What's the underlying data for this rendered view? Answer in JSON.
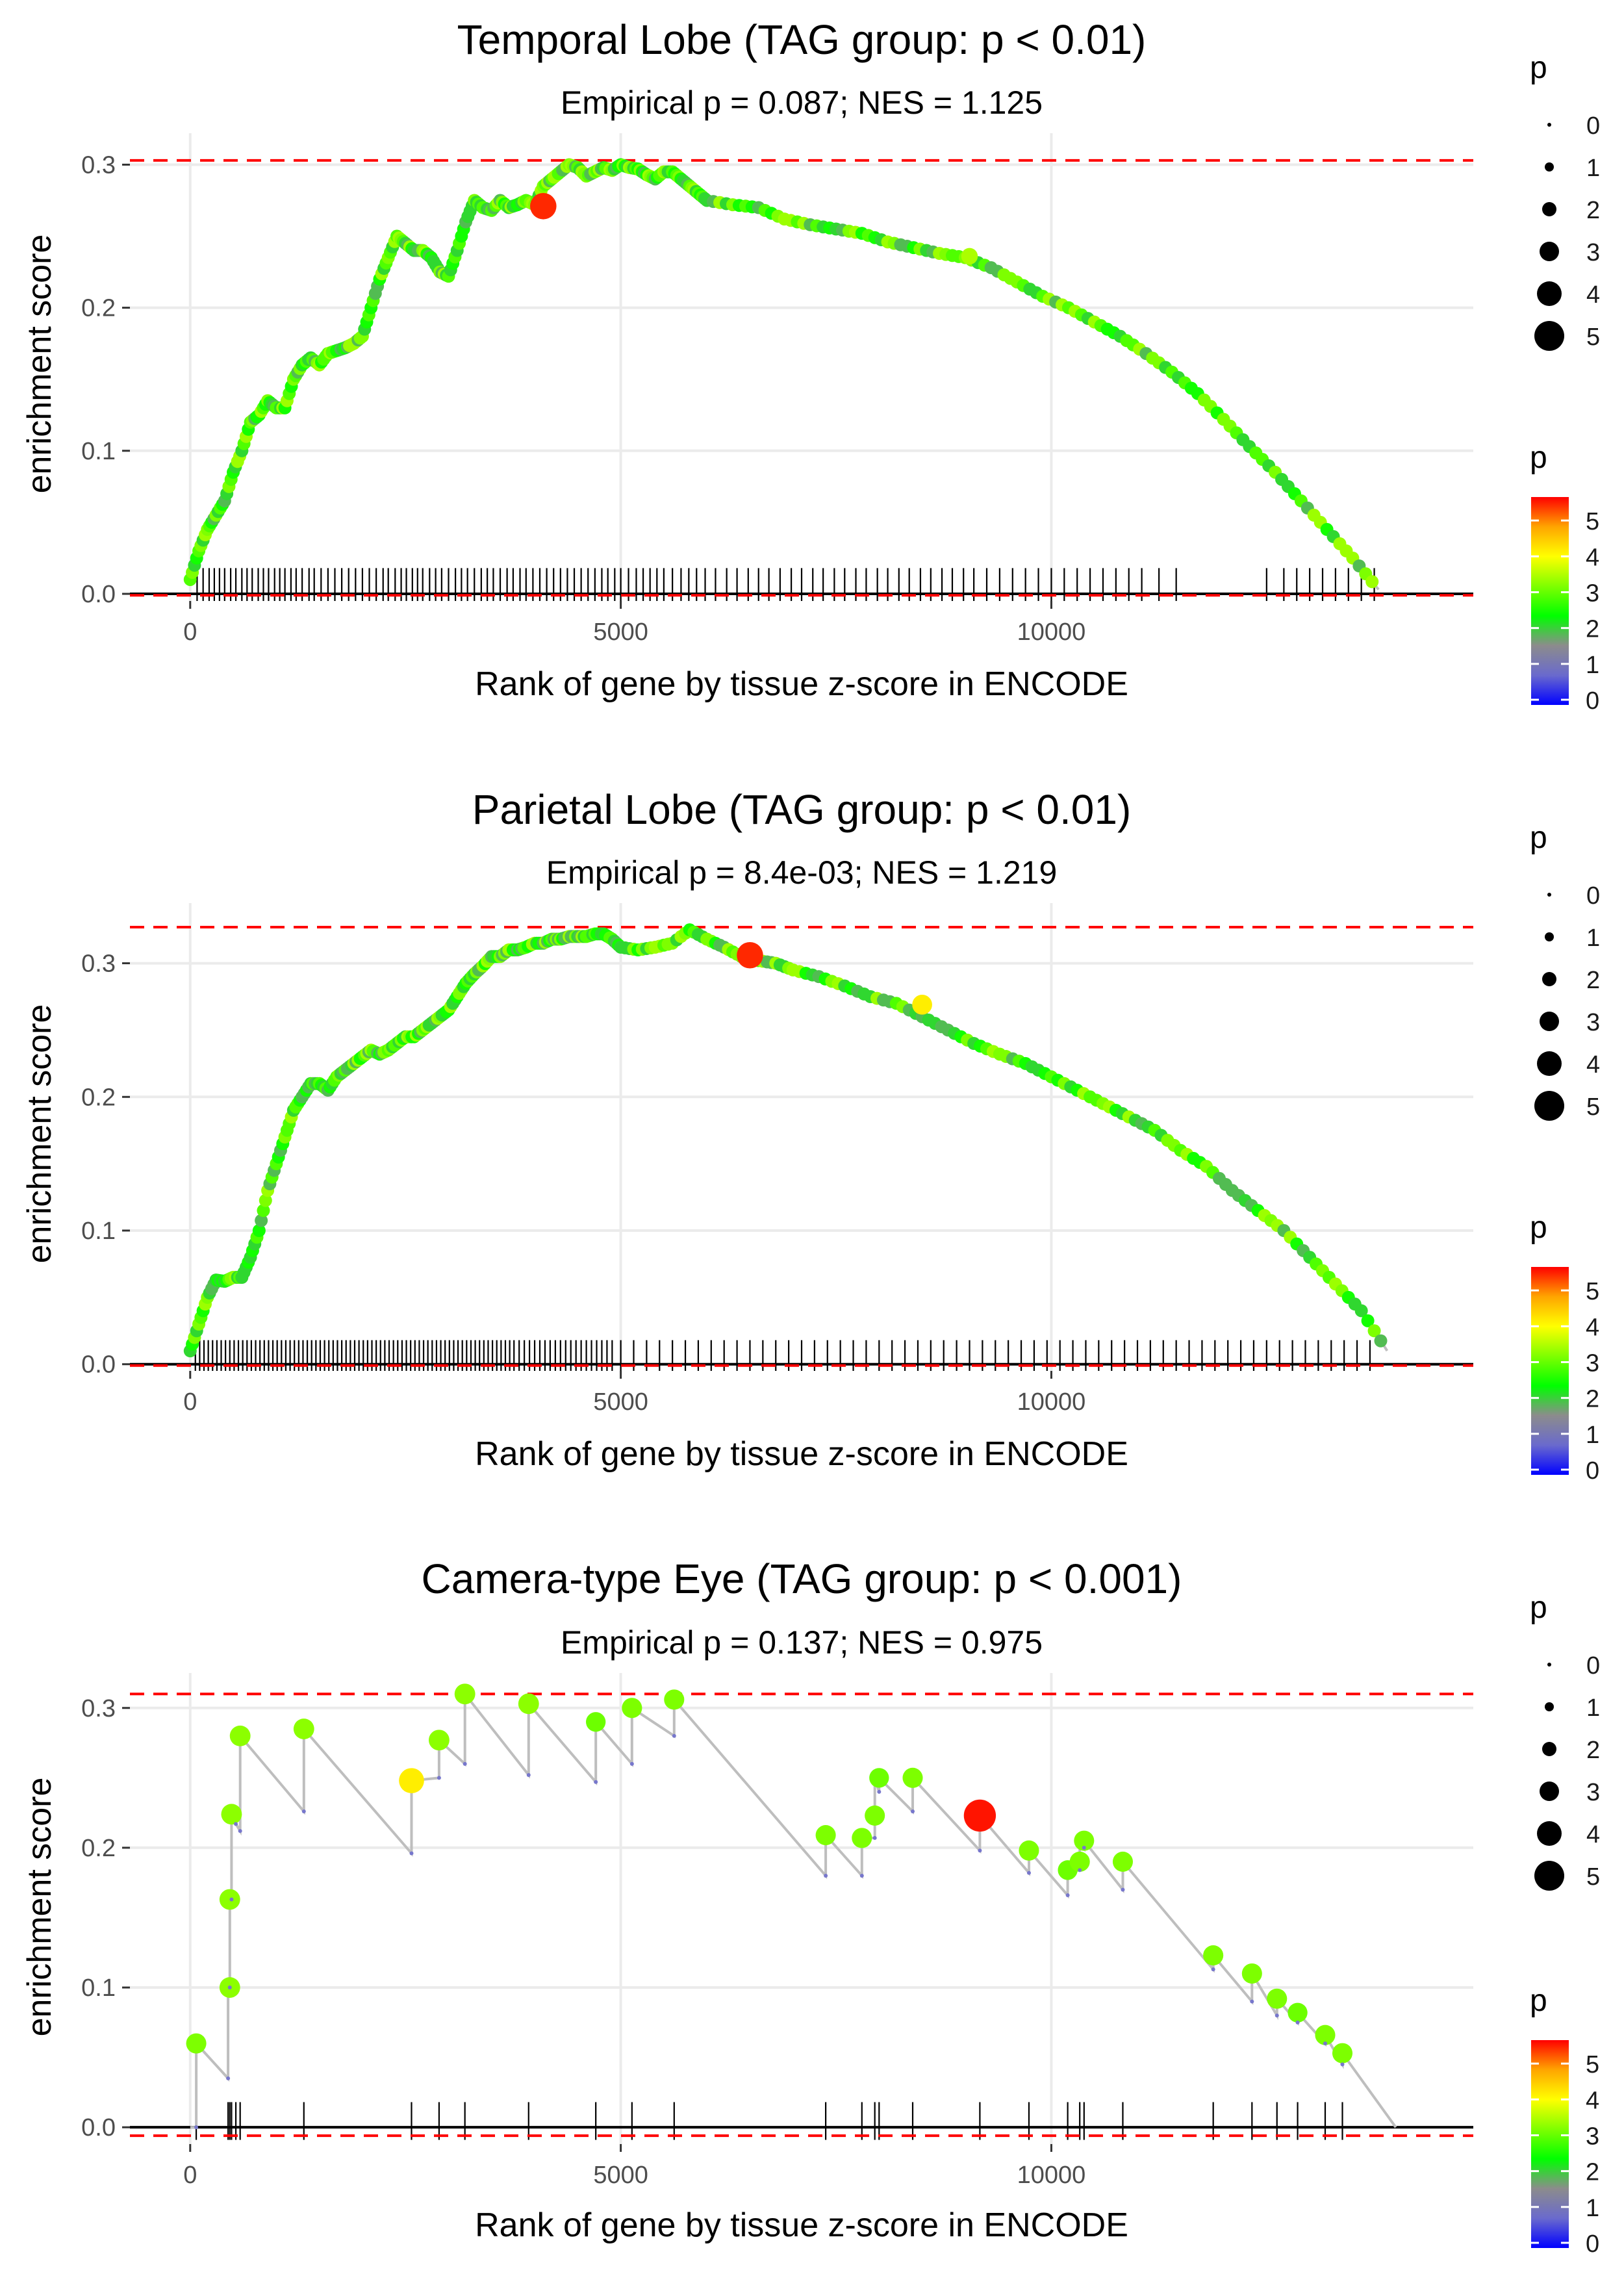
{
  "colors": {
    "panel_bg": "#ffffff",
    "grid": "#ebebeb",
    "path_line": "#bebebe",
    "hit_tick": "#000000",
    "baseline": "#000000",
    "dashed_limit": "#ff0000",
    "colorbar_stops": [
      "#0000ff",
      "#6a6acd",
      "#8c8c8c",
      "#00ff00",
      "#7fff00",
      "#ffff00",
      "#ffa500",
      "#ff0000"
    ]
  },
  "chart_data": [
    {
      "type": "line",
      "title": "Temporal Lobe (TAG group: p < 0.01)",
      "subtitle": "Empirical p = 0.087; NES = 1.125",
      "xlabel": "Rank of gene by tissue z-score in ENCODE",
      "ylabel": "enrichment score",
      "xlim": [
        -700,
        14900
      ],
      "ylim": [
        -0.005,
        0.322
      ],
      "xticks": [
        0,
        5000,
        10000
      ],
      "xtick_labels": [
        "0",
        "5000",
        "10000"
      ],
      "yticks": [
        0.0,
        0.1,
        0.2,
        0.3
      ],
      "ytick_labels": [
        "0.0",
        "0.1",
        "0.2",
        "0.3"
      ],
      "dashed_lines": [
        0.303,
        -0.001
      ],
      "curve_x": [
        0,
        100,
        200,
        300,
        400,
        500,
        600,
        700,
        800,
        900,
        1000,
        1100,
        1200,
        1300,
        1400,
        1500,
        1600,
        1700,
        1800,
        1900,
        2000,
        2100,
        2200,
        2300,
        2400,
        2500,
        2600,
        2700,
        2800,
        2900,
        3000,
        3100,
        3200,
        3300,
        3400,
        3500,
        3600,
        3700,
        3800,
        3900,
        4000,
        4100,
        4200,
        4300,
        4400,
        4500,
        4600,
        4700,
        4800,
        4900,
        5000,
        5100,
        5200,
        5300,
        5400,
        5500,
        5600,
        5700,
        5800,
        5900,
        6000,
        6300,
        6600,
        6900,
        7200,
        7500,
        7800,
        8100,
        8400,
        8700,
        9000,
        9300,
        9600,
        9900,
        10200,
        10500,
        10800,
        11100,
        11400,
        11700,
        12000,
        12300,
        12600,
        12900,
        13200,
        13500,
        13800
      ],
      "curve_y": [
        0.01,
        0.03,
        0.045,
        0.055,
        0.065,
        0.085,
        0.1,
        0.12,
        0.125,
        0.135,
        0.13,
        0.13,
        0.15,
        0.16,
        0.165,
        0.16,
        0.168,
        0.17,
        0.172,
        0.175,
        0.18,
        0.2,
        0.22,
        0.235,
        0.25,
        0.245,
        0.24,
        0.24,
        0.235,
        0.225,
        0.222,
        0.24,
        0.26,
        0.275,
        0.27,
        0.268,
        0.275,
        0.27,
        0.272,
        0.275,
        0.272,
        0.285,
        0.29,
        0.295,
        0.3,
        0.298,
        0.292,
        0.295,
        0.298,
        0.296,
        0.3,
        0.298,
        0.297,
        0.293,
        0.29,
        0.295,
        0.295,
        0.29,
        0.285,
        0.28,
        0.275,
        0.272,
        0.27,
        0.262,
        0.258,
        0.255,
        0.252,
        0.246,
        0.242,
        0.238,
        0.235,
        0.228,
        0.218,
        0.208,
        0.2,
        0.19,
        0.18,
        0.168,
        0.155,
        0.14,
        0.122,
        0.103,
        0.085,
        0.065,
        0.045,
        0.025,
        0.003
      ],
      "hit_ticks": [
        80,
        150,
        220,
        280,
        340,
        400,
        470,
        530,
        600,
        660,
        720,
        790,
        850,
        910,
        980,
        1040,
        1100,
        1170,
        1230,
        1300,
        1380,
        1440,
        1520,
        1600,
        1680,
        1760,
        1840,
        1920,
        2000,
        2080,
        2160,
        2240,
        2300,
        2380,
        2450,
        2510,
        2580,
        2640,
        2700,
        2780,
        2850,
        2920,
        3000,
        3080,
        3150,
        3220,
        3300,
        3380,
        3450,
        3520,
        3600,
        3680,
        3750,
        3830,
        3900,
        3980,
        4060,
        4140,
        4220,
        4300,
        4380,
        4460,
        4540,
        4620,
        4700,
        4780,
        4850,
        4930,
        5000,
        5090,
        5180,
        5260,
        5340,
        5420,
        5500,
        5600,
        5700,
        5790,
        5880,
        5980,
        6100,
        6230,
        6350,
        6480,
        6600,
        6720,
        6850,
        6980,
        7100,
        7230,
        7350,
        7480,
        7600,
        7730,
        7850,
        7980,
        8100,
        8230,
        8350,
        8480,
        8600,
        8730,
        8850,
        8980,
        9100,
        9250,
        9400,
        9550,
        9700,
        9850,
        10000,
        10150,
        10300,
        10450,
        10600,
        10750,
        10900,
        11050,
        11250,
        11450,
        12500,
        12700,
        12850,
        13000,
        13150,
        13300,
        13450,
        13600,
        13750
      ],
      "highlights": [
        {
          "x": 4100,
          "y": 0.271,
          "p": 5.6
        },
        {
          "x": 9050,
          "y": 0.236,
          "p": 3.6
        }
      ],
      "size_legend": {
        "title": "p",
        "values": [
          "0",
          "1",
          "2",
          "3",
          "4",
          "5"
        ]
      },
      "color_legend": {
        "title": "p",
        "values": [
          "0",
          "1",
          "2",
          "3",
          "4",
          "5"
        ]
      }
    },
    {
      "type": "line",
      "title": "Parietal Lobe (TAG group: p < 0.01)",
      "subtitle": "Empirical p = 8.4e-03; NES = 1.219",
      "xlabel": "Rank of gene by tissue z-score in ENCODE",
      "ylabel": "enrichment score",
      "xlim": [
        -700,
        14900
      ],
      "ylim": [
        -0.005,
        0.345
      ],
      "xticks": [
        0,
        5000,
        10000
      ],
      "xtick_labels": [
        "0",
        "5000",
        "10000"
      ],
      "yticks": [
        0.0,
        0.1,
        0.2,
        0.3
      ],
      "ytick_labels": [
        "0.0",
        "0.1",
        "0.2",
        "0.3"
      ],
      "dashed_lines": [
        0.327,
        -0.001
      ],
      "curve_x": [
        0,
        100,
        200,
        300,
        400,
        500,
        600,
        700,
        800,
        900,
        1000,
        1100,
        1200,
        1300,
        1400,
        1500,
        1600,
        1700,
        1800,
        1900,
        2000,
        2100,
        2200,
        2300,
        2400,
        2500,
        2600,
        2700,
        2800,
        2900,
        3000,
        3100,
        3200,
        3300,
        3400,
        3500,
        3600,
        3700,
        3800,
        3900,
        4000,
        4100,
        4200,
        4300,
        4400,
        4500,
        4600,
        4700,
        4800,
        4900,
        5000,
        5200,
        5400,
        5600,
        5800,
        6000,
        6200,
        6400,
        6600,
        6800,
        7000,
        7300,
        7600,
        7900,
        8200,
        8500,
        8800,
        9100,
        9400,
        9700,
        10000,
        10300,
        10600,
        10900,
        11200,
        11500,
        11800,
        12100,
        12400,
        12700,
        13000,
        13300,
        13600,
        13900
      ],
      "curve_y": [
        0.01,
        0.03,
        0.05,
        0.063,
        0.062,
        0.065,
        0.065,
        0.08,
        0.1,
        0.13,
        0.15,
        0.17,
        0.19,
        0.2,
        0.21,
        0.21,
        0.205,
        0.215,
        0.22,
        0.225,
        0.23,
        0.235,
        0.232,
        0.235,
        0.24,
        0.245,
        0.245,
        0.25,
        0.255,
        0.26,
        0.265,
        0.275,
        0.285,
        0.292,
        0.298,
        0.305,
        0.305,
        0.31,
        0.31,
        0.312,
        0.315,
        0.315,
        0.318,
        0.318,
        0.32,
        0.32,
        0.32,
        0.322,
        0.322,
        0.318,
        0.312,
        0.31,
        0.312,
        0.315,
        0.325,
        0.318,
        0.312,
        0.305,
        0.302,
        0.3,
        0.295,
        0.29,
        0.283,
        0.275,
        0.27,
        0.26,
        0.25,
        0.24,
        0.232,
        0.225,
        0.215,
        0.205,
        0.195,
        0.185,
        0.175,
        0.16,
        0.148,
        0.13,
        0.115,
        0.1,
        0.08,
        0.06,
        0.04,
        0.01
      ],
      "hit_ticks": [
        60,
        110,
        160,
        210,
        260,
        310,
        360,
        410,
        460,
        510,
        560,
        610,
        660,
        710,
        760,
        810,
        860,
        910,
        960,
        1010,
        1060,
        1110,
        1160,
        1210,
        1260,
        1310,
        1360,
        1410,
        1460,
        1510,
        1560,
        1610,
        1660,
        1710,
        1760,
        1810,
        1860,
        1910,
        1960,
        2010,
        2060,
        2110,
        2160,
        2210,
        2260,
        2310,
        2360,
        2410,
        2460,
        2510,
        2560,
        2610,
        2660,
        2710,
        2760,
        2810,
        2860,
        2910,
        2960,
        3010,
        3060,
        3110,
        3160,
        3210,
        3260,
        3310,
        3360,
        3410,
        3460,
        3510,
        3560,
        3610,
        3660,
        3710,
        3760,
        3820,
        3880,
        3940,
        4000,
        4060,
        4120,
        4180,
        4240,
        4300,
        4360,
        4420,
        4480,
        4540,
        4600,
        4660,
        4720,
        4780,
        4840,
        4900,
        5000,
        5150,
        5300,
        5450,
        5600,
        5750,
        5900,
        6050,
        6200,
        6350,
        6500,
        6650,
        6800,
        6950,
        7100,
        7250,
        7400,
        7550,
        7700,
        7850,
        8000,
        8150,
        8300,
        8450,
        8600,
        8750,
        8900,
        9050,
        9200,
        9350,
        9500,
        9650,
        9800,
        9950,
        10100,
        10250,
        10400,
        10550,
        10700,
        10850,
        11000,
        11150,
        11300,
        11450,
        11600,
        11750,
        11900,
        12050,
        12200,
        12350,
        12500,
        12650,
        12800,
        12950,
        13100,
        13250,
        13400,
        13550,
        13700
      ],
      "highlights": [
        {
          "x": 6500,
          "y": 0.306,
          "p": 5.6
        },
        {
          "x": 8500,
          "y": 0.269,
          "p": 4.3
        }
      ],
      "size_legend": {
        "title": "p",
        "values": [
          "0",
          "1",
          "2",
          "3",
          "4",
          "5"
        ]
      },
      "color_legend": {
        "title": "p",
        "values": [
          "0",
          "1",
          "2",
          "3",
          "4",
          "5"
        ]
      }
    },
    {
      "type": "line",
      "title": "Camera-type Eye (TAG group: p < 0.001)",
      "subtitle": "Empirical p = 0.137; NES = 0.975",
      "xlabel": "Rank of gene by tissue z-score in ENCODE",
      "ylabel": "enrichment score",
      "xlim": [
        -700,
        14900
      ],
      "ylim": [
        -0.012,
        0.325
      ],
      "xticks": [
        0,
        5000,
        10000
      ],
      "xtick_labels": [
        "0",
        "5000",
        "10000"
      ],
      "yticks": [
        0.0,
        0.1,
        0.2,
        0.3
      ],
      "ytick_labels": [
        "0.0",
        "0.1",
        "0.2",
        "0.3"
      ],
      "dashed_lines": [
        0.31,
        -0.006
      ],
      "curve_x": [
        0,
        70,
        70,
        440,
        440,
        460,
        460,
        480,
        480,
        530,
        530,
        580,
        580,
        1320,
        1320,
        2570,
        2570,
        2890,
        2890,
        3190,
        3190,
        3930,
        3930,
        4710,
        4710,
        5130,
        5130,
        5620,
        5620,
        7380,
        7380,
        7800,
        7800,
        7950,
        7950,
        8000,
        8000,
        8390,
        8390,
        9170,
        9170,
        9740,
        9740,
        10190,
        10190,
        10330,
        10330,
        10380,
        10380,
        10830,
        10830,
        11880,
        11880,
        12330,
        12330,
        12620,
        12620,
        12860,
        12860,
        13180,
        13180,
        13380,
        13380,
        14000
      ],
      "curve_y": [
        0,
        0,
        0.06,
        0.035,
        0.1,
        0.1,
        0.163,
        0.163,
        0.224,
        0.217,
        0.217,
        0.212,
        0.28,
        0.226,
        0.285,
        0.196,
        0.248,
        0.25,
        0.277,
        0.26,
        0.31,
        0.252,
        0.303,
        0.247,
        0.29,
        0.26,
        0.3,
        0.28,
        0.306,
        0.18,
        0.209,
        0.18,
        0.207,
        0.207,
        0.25,
        0.24,
        0.25,
        0.226,
        0.25,
        0.198,
        0.223,
        0.182,
        0.198,
        0.166,
        0.184,
        0.184,
        0.205,
        0.2,
        0.205,
        0.17,
        0.19,
        0.113,
        0.123,
        0.09,
        0.11,
        0.08,
        0.092,
        0.075,
        0.082,
        0.06,
        0.066,
        0.045,
        0.053,
        0
      ],
      "hit_ticks": [
        70,
        440,
        460,
        480,
        530,
        580,
        1320,
        2570,
        2890,
        3190,
        3930,
        4710,
        5130,
        5620,
        7380,
        7800,
        7950,
        8000,
        8390,
        9170,
        9740,
        10190,
        10330,
        10380,
        10830,
        11880,
        12330,
        12620,
        12860,
        13180,
        13380
      ],
      "points": [
        {
          "x": 70,
          "y": 0.06,
          "p": 3.3
        },
        {
          "x": 460,
          "y": 0.1,
          "p": 3.4
        },
        {
          "x": 460,
          "y": 0.163,
          "p": 3.4
        },
        {
          "x": 480,
          "y": 0.224,
          "p": 3.4
        },
        {
          "x": 580,
          "y": 0.28,
          "p": 3.4
        },
        {
          "x": 1320,
          "y": 0.285,
          "p": 3.4
        },
        {
          "x": 2570,
          "y": 0.248,
          "p": 4.3
        },
        {
          "x": 2890,
          "y": 0.277,
          "p": 3.4
        },
        {
          "x": 3190,
          "y": 0.31,
          "p": 3.4
        },
        {
          "x": 3930,
          "y": 0.303,
          "p": 3.4
        },
        {
          "x": 4710,
          "y": 0.29,
          "p": 3.2
        },
        {
          "x": 5130,
          "y": 0.3,
          "p": 3.3
        },
        {
          "x": 5620,
          "y": 0.306,
          "p": 3.3
        },
        {
          "x": 7380,
          "y": 0.209,
          "p": 3.3
        },
        {
          "x": 7800,
          "y": 0.207,
          "p": 3.3
        },
        {
          "x": 7950,
          "y": 0.223,
          "p": 3.3
        },
        {
          "x": 8000,
          "y": 0.25,
          "p": 3.2
        },
        {
          "x": 8390,
          "y": 0.25,
          "p": 3.3
        },
        {
          "x": 9170,
          "y": 0.223,
          "p": 5.7
        },
        {
          "x": 9740,
          "y": 0.198,
          "p": 3.3
        },
        {
          "x": 10190,
          "y": 0.184,
          "p": 3.2
        },
        {
          "x": 10330,
          "y": 0.19,
          "p": 3.3
        },
        {
          "x": 10380,
          "y": 0.205,
          "p": 3.3
        },
        {
          "x": 10830,
          "y": 0.19,
          "p": 3.3
        },
        {
          "x": 11880,
          "y": 0.123,
          "p": 3.3
        },
        {
          "x": 12330,
          "y": 0.11,
          "p": 3.3
        },
        {
          "x": 12620,
          "y": 0.092,
          "p": 3.3
        },
        {
          "x": 12860,
          "y": 0.082,
          "p": 3.2
        },
        {
          "x": 13180,
          "y": 0.066,
          "p": 3.3
        },
        {
          "x": 13380,
          "y": 0.053,
          "p": 3.3
        }
      ],
      "size_legend": {
        "title": "p",
        "values": [
          "0",
          "1",
          "2",
          "3",
          "4",
          "5"
        ]
      },
      "color_legend": {
        "title": "p",
        "values": [
          "0",
          "1",
          "2",
          "3",
          "4",
          "5"
        ]
      }
    }
  ]
}
